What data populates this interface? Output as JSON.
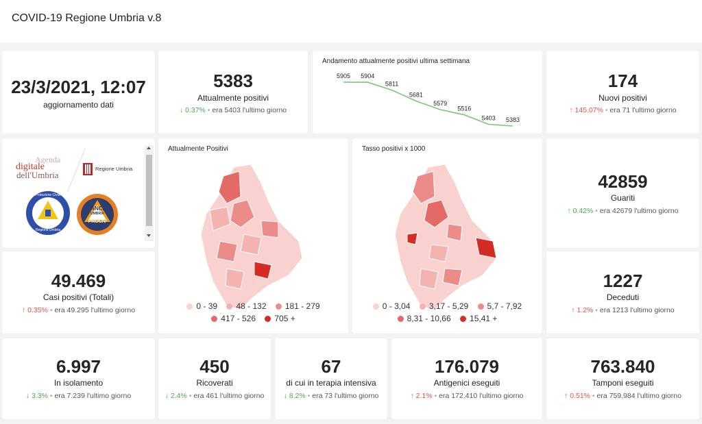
{
  "header": {
    "title": "COVID-19 Regione Umbria v.8"
  },
  "update": {
    "datetime": "23/3/2021, 12:07",
    "label": "aggiornamento dati"
  },
  "kpis": {
    "attualmente_positivi": {
      "value": "5383",
      "label": "Attualmente positivi",
      "arrow": "↓",
      "pct": "0.37%",
      "sep": "•",
      "prev": "era 5403 l'ultimo giorno"
    },
    "nuovi_positivi": {
      "value": "174",
      "label": "Nuovi positivi",
      "arrow": "↑",
      "pct": "145.07%",
      "sep": "•",
      "prev": "era 71 l'ultimo giorno"
    },
    "guariti": {
      "value": "42859",
      "label": "Guariti",
      "arrow": "↑",
      "pct": "0.42%",
      "sep": "•",
      "prev": "era 42679 l'ultimo giorno"
    },
    "casi_totali": {
      "value": "49.469",
      "label": "Casi positivi (Totali)",
      "arrow": "↑",
      "pct": "0.35%",
      "sep": "•",
      "prev": "era 49.295 l'ultimo giorno"
    },
    "deceduti": {
      "value": "1227",
      "label": "Deceduti",
      "arrow": "↑",
      "pct": "1.2%",
      "sep": "•",
      "prev": "era 1213 l'ultimo giorno"
    },
    "isolamento": {
      "value": "6.997",
      "label": "In isolamento",
      "arrow": "↓",
      "pct": "3.3%",
      "sep": "•",
      "prev": "era 7.239 l'ultimo giorno"
    },
    "ricoverati": {
      "value": "450",
      "label": "Ricoverati",
      "arrow": "↓",
      "pct": "2.4%",
      "sep": "•",
      "prev": "era 461 l'ultimo giorno"
    },
    "terapia_intensiva": {
      "value": "67",
      "label": "di cui in terapia intensiva",
      "arrow": "↓",
      "pct": "8.2%",
      "sep": "•",
      "prev": "era 73 l'ultimo giorno"
    },
    "antigenici": {
      "value": "176.079",
      "label": "Antigenici eseguiti",
      "arrow": "↑",
      "pct": "2.1%",
      "sep": "•",
      "prev": "era 172.410 l'ultimo giorno"
    },
    "tamponi": {
      "value": "763.840",
      "label": "Tamponi eseguiti",
      "arrow": "↑",
      "pct": "0.51%",
      "sep": "•",
      "prev": "era 759.984 l'ultimo giorno"
    }
  },
  "logos": {
    "agenda_line1": "Agenda",
    "agenda_line2": "digitale",
    "agenda_line3": "dell'Umbria",
    "regione": "Regione Umbria",
    "protezione": "Protezione Civile",
    "protezione_sub": "Regione Umbria",
    "anci1": "ANCI",
    "anci2": "UMBRIA",
    "anci3": "PROCIV"
  },
  "maps": {
    "left": {
      "title": "Attualmente Positivi",
      "legend": [
        {
          "label": "0 - 39",
          "color": "#f9d2d0"
        },
        {
          "label": "48 - 132",
          "color": "#f3b3b0"
        },
        {
          "label": "181 - 279",
          "color": "#ec8c88"
        },
        {
          "label": "417 - 526",
          "color": "#e46a66"
        },
        {
          "label": "705 +",
          "color": "#d42b24"
        }
      ]
    },
    "right": {
      "title": "Tasso positivi x 1000",
      "legend": [
        {
          "label": "0 - 3,04",
          "color": "#f9d2d0"
        },
        {
          "label": "3,17 - 5,29",
          "color": "#f3b3b0"
        },
        {
          "label": "5,7 - 7,92",
          "color": "#ec8c88"
        },
        {
          "label": "8,31 - 10,66",
          "color": "#e46a66"
        },
        {
          "label": "15,41 +",
          "color": "#d42b24"
        }
      ]
    }
  },
  "chart_data": {
    "type": "line",
    "title": "Andamento attualmente positivi ultima settimana",
    "values": [
      5905,
      5904,
      5811,
      5681,
      5579,
      5516,
      5403,
      5383
    ],
    "data_labels": [
      "5905",
      "5904",
      "5811",
      "5681",
      "5579",
      "5516",
      "5403",
      "5383"
    ],
    "ylim": [
      5383,
      5905
    ],
    "grid": false,
    "color": "#7cc576"
  },
  "colors": {
    "up": "#e0534a",
    "down": "#4caa4c",
    "line": "#7cc576"
  }
}
